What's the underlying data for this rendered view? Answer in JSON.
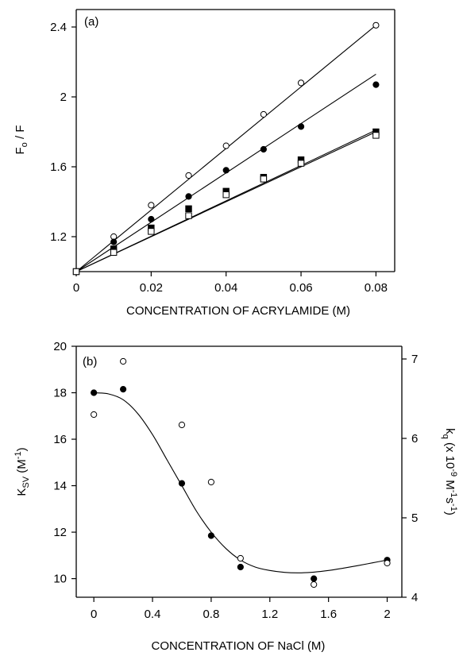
{
  "chart_data": [
    {
      "type": "scatter",
      "panel_label": "(a)",
      "xlabel": "CONCENTRATION  OF  ACRYLAMIDE  (M)",
      "ylabel_main": "F",
      "ylabel_sub": "o",
      "ylabel_rest": " / F",
      "xlim": [
        0,
        0.085
      ],
      "ylim": [
        1.0,
        2.5
      ],
      "xticks": [
        0,
        0.02,
        0.04,
        0.06,
        0.08
      ],
      "xtick_labels": [
        "0",
        "0.02",
        "0.04",
        "0.06",
        "0.08"
      ],
      "yticks": [
        1.2,
        1.6,
        2.0,
        2.4
      ],
      "ytick_labels": [
        "1.2",
        "1.6",
        "2",
        "2.4"
      ],
      "grid": false,
      "series": [
        {
          "marker": "open-circle",
          "x": [
            0,
            0.01,
            0.02,
            0.03,
            0.04,
            0.05,
            0.06,
            0.08
          ],
          "y": [
            1.0,
            1.2,
            1.38,
            1.55,
            1.72,
            1.9,
            2.08,
            2.41
          ],
          "fit": [
            [
              0,
              1.0
            ],
            [
              0.08,
              2.41
            ]
          ]
        },
        {
          "marker": "filled-circle",
          "x": [
            0,
            0.01,
            0.02,
            0.03,
            0.04,
            0.05,
            0.06,
            0.08
          ],
          "y": [
            1.0,
            1.17,
            1.3,
            1.43,
            1.58,
            1.7,
            1.83,
            2.07
          ],
          "fit": [
            [
              0,
              1.0
            ],
            [
              0.08,
              2.13
            ]
          ]
        },
        {
          "marker": "filled-square",
          "x": [
            0,
            0.01,
            0.02,
            0.03,
            0.04,
            0.05,
            0.06,
            0.08
          ],
          "y": [
            1.0,
            1.13,
            1.25,
            1.36,
            1.46,
            1.54,
            1.64,
            1.8
          ],
          "fit": [
            [
              0,
              1.0
            ],
            [
              0.08,
              1.81
            ]
          ]
        },
        {
          "marker": "open-square",
          "x": [
            0,
            0.01,
            0.02,
            0.03,
            0.04,
            0.05,
            0.06,
            0.08
          ],
          "y": [
            1.0,
            1.11,
            1.23,
            1.32,
            1.44,
            1.53,
            1.62,
            1.78
          ],
          "fit": [
            [
              0,
              1.0
            ],
            [
              0.08,
              1.8
            ]
          ]
        }
      ]
    },
    {
      "type": "scatter",
      "panel_label": "(b)",
      "xlabel": "CONCENTRATION  OF  NaCl (M)",
      "ylabel_left_main": "K",
      "ylabel_left_sub": "SV",
      "ylabel_left_rest": " (M",
      "ylabel_left_sup": "-1",
      "ylabel_left_close": ")",
      "ylabel_right": "k",
      "ylabel_right_sub": "q",
      "ylabel_right_rest": " (x 10",
      "ylabel_right_sup": "-9",
      "ylabel_right_unit": " M",
      "ylabel_right_sup2": "-1",
      "ylabel_right_unit2": "s",
      "ylabel_right_sup3": "-1",
      "ylabel_right_close": ")",
      "xlim": [
        -0.12,
        2.1
      ],
      "ylim_left": [
        9.2,
        20
      ],
      "ylim_right": [
        4.0,
        7.16
      ],
      "xticks": [
        0,
        0.4,
        0.8,
        1.2,
        1.6,
        2.0
      ],
      "xtick_labels": [
        "0",
        "0.4",
        "0.8",
        "1.2",
        "1.6",
        "2"
      ],
      "yticks_left": [
        10,
        12,
        14,
        16,
        18,
        20
      ],
      "ytick_labels_left": [
        "10",
        "12",
        "14",
        "16",
        "18",
        "20"
      ],
      "yticks_right": [
        4,
        5,
        6,
        7
      ],
      "ytick_labels_right": [
        "4",
        "5",
        "6",
        "7"
      ],
      "grid": false,
      "series": [
        {
          "marker": "filled-circle",
          "axis": "left",
          "x": [
            0,
            0.2,
            0.6,
            0.8,
            1.0,
            1.5,
            2.0
          ],
          "y": [
            18.0,
            18.15,
            14.1,
            11.85,
            10.5,
            10.0,
            10.8
          ]
        },
        {
          "marker": "open-circle",
          "axis": "right",
          "x": [
            0,
            0.2,
            0.6,
            0.8,
            1.0,
            1.5,
            2.0
          ],
          "y": [
            6.3,
            6.97,
            6.17,
            5.45,
            4.49,
            4.16,
            4.43
          ]
        }
      ],
      "fit_curve": {
        "axis": "left",
        "points": [
          [
            0,
            18.0
          ],
          [
            0.1,
            17.95
          ],
          [
            0.2,
            17.7
          ],
          [
            0.3,
            17.1
          ],
          [
            0.4,
            16.2
          ],
          [
            0.5,
            15.1
          ],
          [
            0.6,
            14.0
          ],
          [
            0.7,
            12.9
          ],
          [
            0.8,
            12.0
          ],
          [
            0.9,
            11.3
          ],
          [
            1.0,
            10.8
          ],
          [
            1.1,
            10.5
          ],
          [
            1.2,
            10.35
          ],
          [
            1.3,
            10.27
          ],
          [
            1.4,
            10.25
          ],
          [
            1.5,
            10.28
          ],
          [
            1.6,
            10.35
          ],
          [
            1.7,
            10.45
          ],
          [
            1.8,
            10.56
          ],
          [
            1.9,
            10.68
          ],
          [
            2.0,
            10.8
          ]
        ]
      }
    }
  ]
}
